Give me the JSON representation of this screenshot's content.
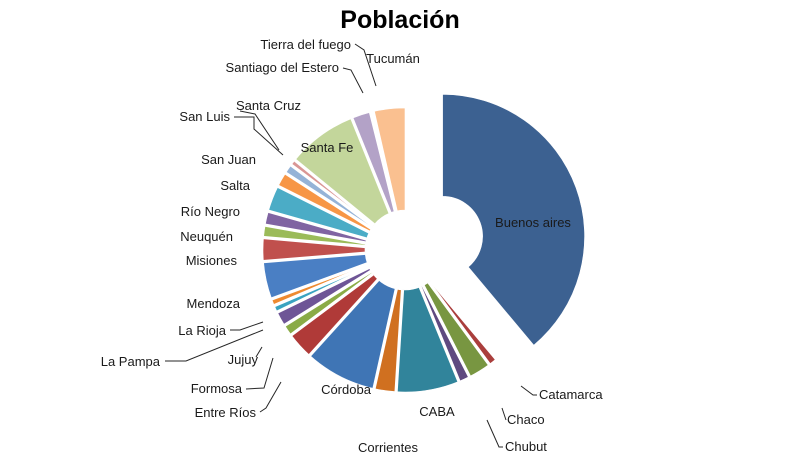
{
  "chart_data": {
    "type": "pie",
    "title": "Población",
    "style": "exploded",
    "slices": [
      {
        "label": "Buenos aires",
        "value": 38.9,
        "color": "#3c6191"
      },
      {
        "label": "Catamarca",
        "value": 1.0,
        "color": "#aa3e3c"
      },
      {
        "label": "Chaco",
        "value": 2.6,
        "color": "#789641"
      },
      {
        "label": "Chubut",
        "value": 1.3,
        "color": "#5f4a80"
      },
      {
        "label": "CABA",
        "value": 7.2,
        "color": "#31849b"
      },
      {
        "label": "Corrientes",
        "value": 2.5,
        "color": "#d07020"
      },
      {
        "label": "Córdoba",
        "value": 8.2,
        "color": "#3f75b5"
      },
      {
        "label": "Entre Ríos",
        "value": 3.1,
        "color": "#b03a38"
      },
      {
        "label": "Formosa",
        "value": 1.3,
        "color": "#8aab46"
      },
      {
        "label": "Jujuy",
        "value": 1.7,
        "color": "#6e5596"
      },
      {
        "label": "La Pampa",
        "value": 0.8,
        "color": "#3aa3c0"
      },
      {
        "label": "La Rioja",
        "value": 0.8,
        "color": "#ee8a30"
      },
      {
        "label": "Mendoza",
        "value": 4.3,
        "color": "#4a7fc4"
      },
      {
        "label": "Misiones",
        "value": 2.7,
        "color": "#c0504d"
      },
      {
        "label": "Neuquén",
        "value": 1.4,
        "color": "#9bbb59"
      },
      {
        "label": "Río Negro",
        "value": 1.6,
        "color": "#8064a2"
      },
      {
        "label": "Salta",
        "value": 3.0,
        "color": "#4bacc6"
      },
      {
        "label": "San Juan",
        "value": 1.7,
        "color": "#f79646"
      },
      {
        "label": "San Luis",
        "value": 1.1,
        "color": "#95b3d7"
      },
      {
        "label": "Santa Cruz",
        "value": 0.7,
        "color": "#d99694"
      },
      {
        "label": "Santa Fe",
        "value": 8.0,
        "color": "#c3d69b"
      },
      {
        "label": "Santiago del Estero",
        "value": 2.2,
        "color": "#b3a2c7"
      },
      {
        "label": "Tierra del fuego",
        "value": 0.3,
        "color": "#93cddd"
      },
      {
        "label": "Tucumán",
        "value": 3.6,
        "color": "#fac090"
      }
    ]
  }
}
